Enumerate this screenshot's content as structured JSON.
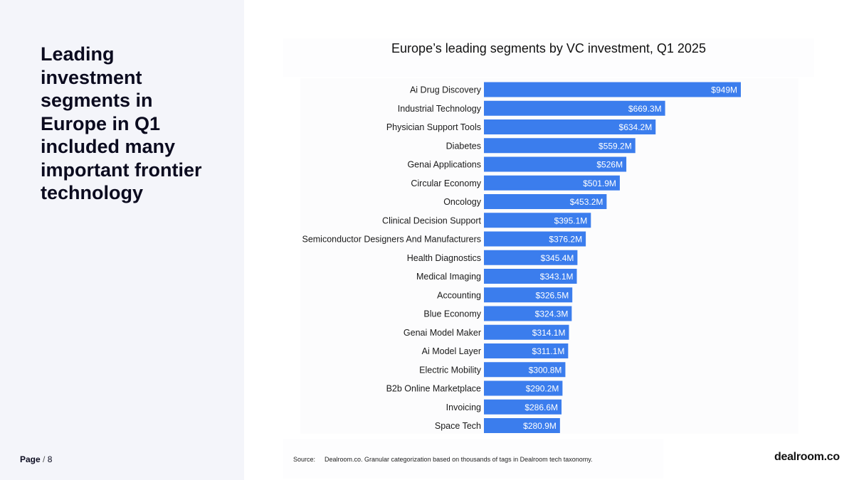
{
  "headline": "Leading investment segments in Europe in Q1 included many important frontier technology",
  "footer": {
    "page_label": "Page",
    "page_number": "8"
  },
  "source": {
    "label": "Source:",
    "text": "Dealroom.co. Granular categorization based on thousands of tags in Dealroom tech taxonomy."
  },
  "logo": "dealroom.co",
  "colors": {
    "bar": "#3b7ded",
    "bar_label": "#ffffff",
    "left_panel": "#f4f5fa"
  },
  "chart_data": {
    "type": "bar",
    "orientation": "horizontal",
    "title": "Europe’s leading segments by VC investment, Q1 2025",
    "xlabel": "",
    "ylabel": "",
    "unit": "$M",
    "categories": [
      "Ai Drug Discovery",
      "Industrial Technology",
      "Physician Support Tools",
      "Diabetes",
      "Genai Applications",
      "Circular Economy",
      "Oncology",
      "Clinical Decision Support",
      "Semiconductor Designers And Manufacturers",
      "Health Diagnostics",
      "Medical Imaging",
      "Accounting",
      "Blue Economy",
      "Genai Model Maker",
      "Ai Model Layer",
      "Electric Mobility",
      "B2b Online Marketplace",
      "Invoicing",
      "Space Tech"
    ],
    "values": [
      949,
      669.3,
      634.2,
      559.2,
      526,
      501.9,
      453.2,
      395.1,
      376.2,
      345.4,
      343.1,
      326.5,
      324.3,
      314.1,
      311.1,
      300.8,
      290.2,
      286.6,
      280.9
    ],
    "value_labels": [
      "$949M",
      "$669.3M",
      "$634.2M",
      "$559.2M",
      "$526M",
      "$501.9M",
      "$453.2M",
      "$395.1M",
      "$376.2M",
      "$345.4M",
      "$343.1M",
      "$326.5M",
      "$324.3M",
      "$314.1M",
      "$311.1M",
      "$300.8M",
      "$290.2M",
      "$286.6M",
      "$280.9M"
    ],
    "grid": false,
    "legend": "none"
  }
}
